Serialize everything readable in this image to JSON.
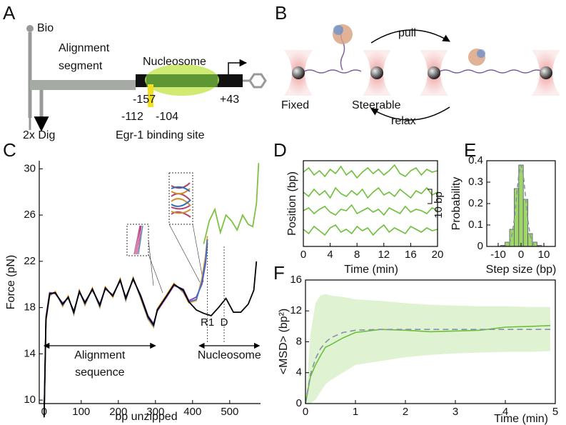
{
  "panel_a": {
    "label": "A",
    "bio": "Bio",
    "segment": [
      "Alignment",
      "segment"
    ],
    "nucleosome": "Nucleosome",
    "left_end": "-157",
    "right_end": "+43",
    "site_start": "-112",
    "site_end": "-104",
    "dig": "2x Dig",
    "site": "Egr-1 binding site"
  },
  "panel_b": {
    "label": "B",
    "pull": "pull",
    "fixed": "Fixed",
    "steerable": "Steerable",
    "relax": "relax"
  },
  "chart_data": [
    {
      "type": "line",
      "panel": "C",
      "xlabel": "bp unzipped",
      "ylabel": "Force (pN)",
      "xlim": [
        -13,
        583
      ],
      "ylim": [
        9.7,
        30.7
      ],
      "xticks": [
        0,
        100,
        200,
        300,
        400,
        500
      ],
      "yticks": [
        10,
        14,
        18,
        22,
        26,
        30
      ],
      "series": [
        {
          "color": "#f0a030",
          "x": [
            0,
            5,
            15,
            30,
            50,
            65,
            80,
            95,
            110,
            130,
            150,
            165,
            185,
            205,
            220,
            240,
            260,
            280,
            295,
            305,
            330,
            350,
            375,
            390,
            410,
            425,
            435,
            440
          ],
          "values": [
            8.6,
            16.8,
            19.0,
            19.4,
            18.1,
            19.0,
            17.4,
            19.5,
            18.2,
            19.7,
            18.0,
            19.8,
            18.9,
            20.5,
            18.6,
            20.6,
            18.8,
            17.0,
            16.3,
            17.9,
            19.1,
            20.1,
            19.3,
            18.4,
            18.6,
            20.5,
            22.5,
            24.2
          ]
        },
        {
          "color": "#8a3fb0",
          "x": [
            0,
            5,
            15,
            30,
            50,
            65,
            80,
            95,
            110,
            130,
            150,
            165,
            185,
            205,
            220,
            240,
            260,
            280,
            295,
            305,
            330,
            350,
            375,
            390,
            410,
            425,
            435,
            440
          ],
          "values": [
            8.6,
            17.2,
            19.3,
            19.2,
            18.4,
            18.8,
            17.7,
            19.3,
            18.5,
            19.5,
            18.3,
            19.6,
            19.1,
            20.3,
            18.9,
            20.4,
            19.1,
            17.3,
            16.6,
            17.7,
            18.9,
            19.9,
            19.6,
            18.6,
            18.9,
            20.0,
            21.8,
            23.6
          ]
        },
        {
          "color": "#3a78c0",
          "x": [
            0,
            5,
            15,
            30,
            50,
            65,
            80,
            95,
            110,
            130,
            150,
            165,
            185,
            205,
            220,
            240,
            260,
            280,
            295,
            305,
            330,
            350,
            375,
            390,
            410,
            425,
            435,
            440
          ],
          "values": [
            8.6,
            17.0,
            19.1,
            19.3,
            18.2,
            18.9,
            17.5,
            19.4,
            18.3,
            19.6,
            18.1,
            19.7,
            19.0,
            20.4,
            18.7,
            20.5,
            18.9,
            17.1,
            16.4,
            17.8,
            19.0,
            20.0,
            19.4,
            18.5,
            18.7,
            20.2,
            22.1,
            23.9
          ]
        },
        {
          "color": "#7dc242",
          "x": [
            430,
            445,
            460,
            475,
            490,
            505,
            520,
            535,
            550,
            562,
            572,
            578
          ],
          "values": [
            23.5,
            25.5,
            26.5,
            24.5,
            26.0,
            25.5,
            24.7,
            26.0,
            25.2,
            25.0,
            27.0,
            30.5
          ]
        },
        {
          "color": "#000000",
          "x": [
            0,
            5,
            15,
            30,
            50,
            65,
            80,
            95,
            110,
            130,
            150,
            165,
            185,
            205,
            220,
            240,
            260,
            280,
            295,
            305,
            330,
            350,
            375,
            390,
            410,
            430,
            450,
            470,
            490,
            510,
            530,
            550,
            565,
            572
          ],
          "values": [
            8.5,
            17.0,
            19.2,
            19.3,
            18.3,
            18.9,
            17.6,
            19.4,
            18.4,
            19.6,
            18.2,
            19.7,
            19.0,
            20.4,
            18.8,
            20.5,
            19.0,
            17.2,
            16.5,
            17.8,
            19.0,
            20.0,
            19.5,
            18.5,
            17.8,
            17.5,
            17.3,
            18.0,
            18.8,
            17.6,
            17.6,
            18.3,
            19.5,
            22.0
          ]
        }
      ],
      "markers": [
        {
          "label": "R1",
          "x": 440
        },
        {
          "label": "D",
          "x": 485
        }
      ],
      "spans": [
        {
          "label": [
            "Alignment",
            "sequence"
          ],
          "x": [
            0,
            300
          ]
        },
        {
          "label": [
            "Nucleosome"
          ],
          "x": [
            418,
            580
          ]
        }
      ]
    },
    {
      "type": "line",
      "panel": "D",
      "xlabel": "Time (min)",
      "ylabel": "Position (bp)",
      "xlim": [
        0,
        20
      ],
      "ylim": [
        0,
        60
      ],
      "xticks": [
        0,
        4,
        8,
        12,
        16,
        20
      ],
      "x": [
        0,
        0.8,
        1.6,
        2.4,
        3.2,
        4,
        4.8,
        5.6,
        6.4,
        7.2,
        8,
        8.8,
        9.6,
        10.4,
        11.2,
        12,
        12.8,
        13.6,
        14.4,
        15.2,
        16,
        16.8,
        17.6,
        18.4,
        19.2,
        20
      ],
      "series": [
        {
          "color": "#6cbf3a",
          "values": [
            52,
            55,
            50,
            53,
            49,
            54,
            51,
            56,
            50,
            53,
            48,
            52,
            55,
            51,
            54,
            50,
            53,
            57,
            51,
            49,
            53,
            55,
            50,
            54,
            52,
            53
          ]
        },
        {
          "color": "#6cbf3a",
          "values": [
            38,
            35,
            40,
            36,
            39,
            34,
            41,
            37,
            35,
            39,
            36,
            40,
            34,
            38,
            41,
            36,
            38,
            35,
            40,
            37,
            34,
            39,
            37,
            41,
            36,
            38
          ]
        },
        {
          "color": "#6cbf3a",
          "values": [
            25,
            27,
            23,
            26,
            28,
            24,
            22,
            26,
            25,
            29,
            23,
            25,
            27,
            24,
            26,
            22,
            27,
            25,
            23,
            28,
            24,
            26,
            25,
            23,
            27,
            25
          ]
        },
        {
          "color": "#6cbf3a",
          "values": [
            12,
            9,
            14,
            11,
            8,
            13,
            15,
            10,
            12,
            9,
            14,
            11,
            13,
            8,
            12,
            15,
            10,
            13,
            11,
            9,
            14,
            12,
            10,
            13,
            11,
            12
          ]
        }
      ],
      "scale_bar": {
        "label": "10 bp",
        "value": 10
      }
    },
    {
      "type": "histogram",
      "panel": "E",
      "xlabel": "Step size (bp)",
      "ylabel": "Probability",
      "xlim": [
        -15,
        15
      ],
      "ylim": [
        0,
        0.4
      ],
      "xticks": [
        -10,
        0,
        10
      ],
      "yticks": [
        0,
        0.1,
        0.2,
        0.3,
        0.4
      ],
      "bins": [
        -9,
        -7,
        -5,
        -3,
        -1,
        1,
        3,
        5,
        7,
        9
      ],
      "values": [
        0.005,
        0.02,
        0.08,
        0.27,
        0.38,
        0.22,
        0.06,
        0.02,
        0.005
      ],
      "color": "#9fd66a",
      "fit": {
        "x": [
          -8,
          -7,
          -6,
          -5,
          -4,
          -3,
          -2,
          -1,
          0,
          1,
          2,
          3,
          4,
          5,
          6,
          7,
          8
        ],
        "values": [
          0.0001,
          0.0008,
          0.004,
          0.017,
          0.051,
          0.123,
          0.23,
          0.335,
          0.38,
          0.335,
          0.23,
          0.123,
          0.051,
          0.017,
          0.004,
          0.0008,
          0.0001
        ],
        "color": "#8890a8"
      }
    },
    {
      "type": "line",
      "panel": "F",
      "xlabel": "Time (min)",
      "ylabel": "<MSD> (bp²)",
      "xlim": [
        0,
        5
      ],
      "ylim": [
        0,
        16
      ],
      "xticks": [
        0,
        1,
        2,
        3,
        4,
        5
      ],
      "yticks": [
        0,
        4,
        8,
        12,
        16
      ],
      "x": [
        0,
        0.1,
        0.2,
        0.3,
        0.4,
        0.5,
        0.75,
        1,
        1.5,
        2,
        2.5,
        3,
        3.5,
        4,
        4.5,
        4.9
      ],
      "band": {
        "color": "#dff3d3",
        "upper": [
          0,
          9,
          13,
          14,
          14.2,
          14,
          13.8,
          13.5,
          13.3,
          13,
          12.8,
          12.7,
          12.6,
          12.6,
          12.5,
          12.5
        ],
        "lower": [
          0,
          0,
          0.5,
          1.5,
          2.5,
          3,
          4,
          5,
          5.5,
          6,
          6.3,
          6.5,
          6.6,
          6.7,
          6.7,
          6.8
        ]
      },
      "series": [
        {
          "color": "#6cbf3a",
          "values": [
            0,
            3.5,
            5.0,
            6.2,
            7.3,
            7.6,
            8.5,
            9.2,
            9.6,
            9.5,
            9.3,
            9.4,
            9.5,
            9.9,
            10.0,
            10.1
          ]
        },
        {
          "color": "#8890a8",
          "dashed": true,
          "values": [
            0,
            3.8,
            5.8,
            7.1,
            7.9,
            8.5,
            9.2,
            9.5,
            9.6,
            9.6,
            9.6,
            9.6,
            9.6,
            9.6,
            9.6,
            9.6
          ]
        }
      ]
    }
  ]
}
